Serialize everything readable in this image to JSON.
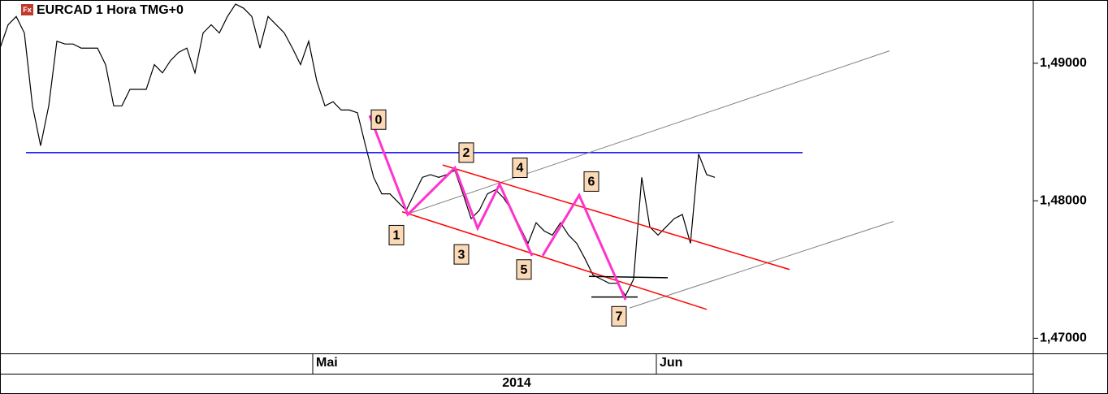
{
  "chart_data": {
    "type": "line",
    "title": "EURCAD 1 Hora TMG+0",
    "icon": "Fx",
    "year": "2014",
    "color": "#000000",
    "values": [
      1.4911,
      1.4928,
      1.4934,
      1.4922,
      1.4869,
      1.484,
      1.4869,
      1.4916,
      1.4914,
      1.4914,
      1.4911,
      1.4911,
      1.4911,
      1.4899,
      1.4869,
      1.4869,
      1.4881,
      1.4881,
      1.4881,
      1.4899,
      1.4893,
      1.4902,
      1.4908,
      1.4911,
      1.4893,
      1.4922,
      1.4928,
      1.4922,
      1.4934,
      1.4943,
      1.494,
      1.4934,
      1.4911,
      1.4934,
      1.4928,
      1.4922,
      1.4911,
      1.4899,
      1.4916,
      1.4887,
      1.4869,
      1.4872,
      1.4866,
      1.4866,
      1.4864,
      1.484,
      1.4817,
      1.4805,
      1.4805,
      1.4799,
      1.4793,
      1.4805,
      1.4817,
      1.4819,
      1.4817,
      1.4819,
      1.4822,
      1.4805,
      1.4787,
      1.4793,
      1.4805,
      1.4808,
      1.4802,
      1.4793,
      1.4781,
      1.4769,
      1.4784,
      1.4778,
      1.4775,
      1.4784,
      1.4775,
      1.4769,
      1.4758,
      1.4746,
      1.4743,
      1.474,
      1.474,
      1.4731,
      1.4743,
      1.4817,
      1.4781,
      1.4775,
      1.4781,
      1.4787,
      1.479,
      1.4769,
      1.4834,
      1.4819,
      1.4817
    ],
    "xlim": [
      0,
      127.2
    ],
    "ylim": [
      1.4689,
      1.4946
    ],
    "xticks": [
      {
        "value": 38.5,
        "label": "Mai"
      },
      {
        "value": 80.8,
        "label": "Jun"
      }
    ],
    "yticks": [
      {
        "value": 1.47,
        "label": "1,47000"
      },
      {
        "value": 1.48,
        "label": "1,48000"
      },
      {
        "value": 1.49,
        "label": "1,49000"
      }
    ],
    "annotation_lines": [
      {
        "color": "#0000ff",
        "x": [
          3.2,
          98.8
        ],
        "y": [
          1.4835,
          1.4835
        ]
      },
      {
        "color": "#808080",
        "x": [
          50,
          109.5
        ],
        "y": [
          1.479,
          1.4909
        ]
      },
      {
        "color": "#808080",
        "x": [
          77.5,
          110
        ],
        "y": [
          1.4722,
          1.4785
        ]
      },
      {
        "color": "#ff0000",
        "x": [
          54.5,
          97.2
        ],
        "y": [
          1.4826,
          1.475
        ]
      },
      {
        "color": "#ff0000",
        "x": [
          49.5,
          87
        ],
        "y": [
          1.4792,
          1.4721
        ]
      },
      {
        "color": "#000000",
        "x": [
          72.5,
          82.2
        ],
        "y": [
          1.4745,
          1.4744
        ]
      },
      {
        "color": "#000000",
        "x": [
          72.8,
          78.5
        ],
        "y": [
          1.473,
          1.473
        ]
      },
      {
        "color": "#ff33cc",
        "x": [
          45.5,
          50.2,
          56,
          58.8,
          61.5,
          65.5
        ],
        "y": [
          1.4862,
          1.479,
          1.4824,
          1.478,
          1.4812,
          1.476
        ]
      },
      {
        "color": "#ff33cc",
        "x": [
          66.8,
          71.3,
          77
        ],
        "y": [
          1.476,
          1.4804,
          1.4728
        ]
      }
    ],
    "wave_labels": [
      {
        "text": "0",
        "x": 46.6,
        "y": 1.4859
      },
      {
        "text": "1",
        "x": 48.8,
        "y": 1.4775
      },
      {
        "text": "2",
        "x": 57.4,
        "y": 1.4835
      },
      {
        "text": "3",
        "x": 56.8,
        "y": 1.4761
      },
      {
        "text": "4",
        "x": 64,
        "y": 1.4824
      },
      {
        "text": "5",
        "x": 64.5,
        "y": 1.475
      },
      {
        "text": "6",
        "x": 72.8,
        "y": 1.4814
      },
      {
        "text": "7",
        "x": 76.2,
        "y": 1.4716
      }
    ]
  }
}
